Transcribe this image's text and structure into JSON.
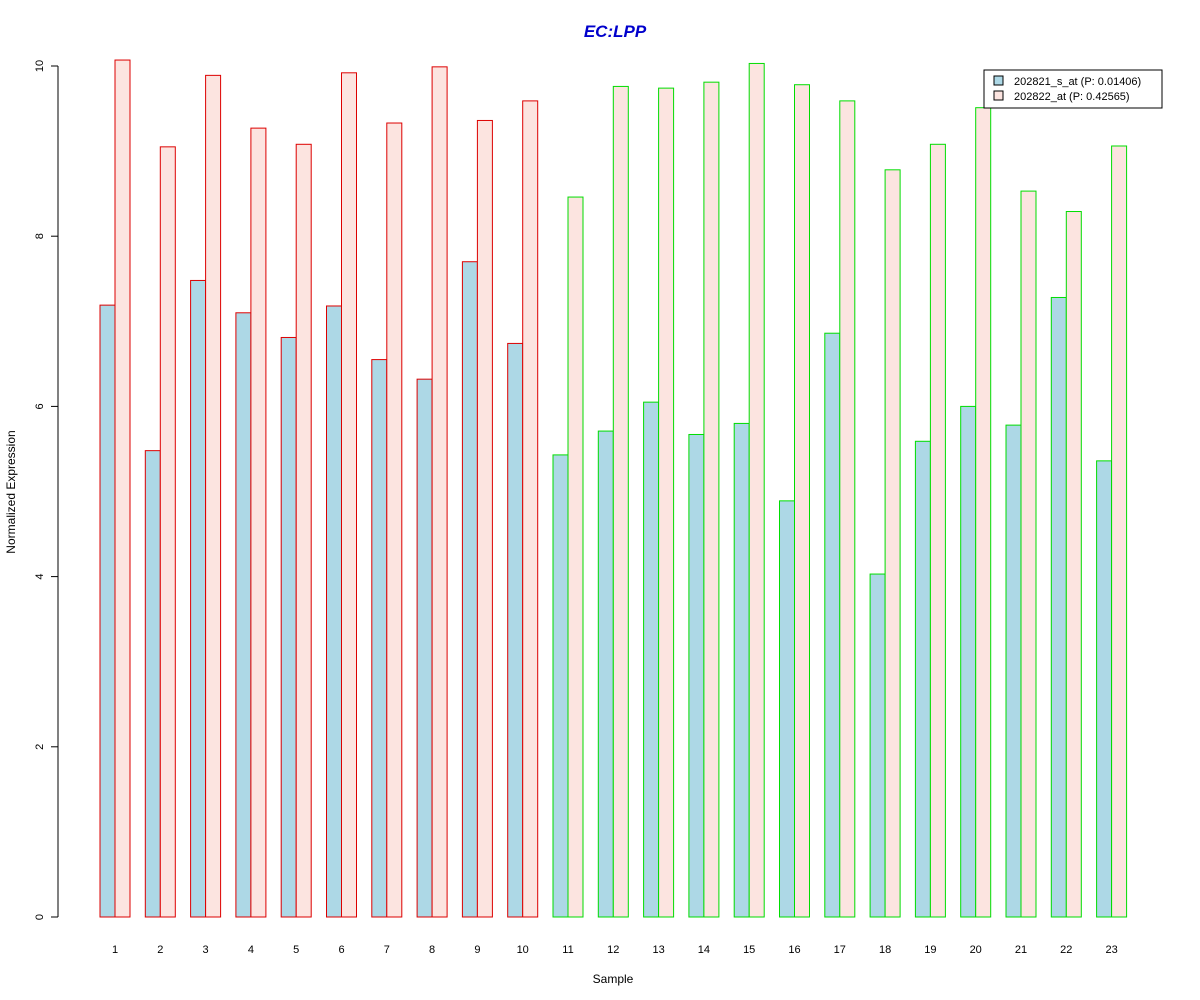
{
  "chart_data": {
    "type": "bar",
    "title": "EC:LPP",
    "xlabel": "Sample",
    "ylabel": "Normalized Expression",
    "ylim": [
      0,
      10
    ],
    "yticks": [
      0,
      2,
      4,
      6,
      8,
      10
    ],
    "grid": false,
    "legend_position": "top-right",
    "categories": [
      "1",
      "2",
      "3",
      "4",
      "5",
      "6",
      "7",
      "8",
      "9",
      "10",
      "11",
      "12",
      "13",
      "14",
      "15",
      "16",
      "17",
      "18",
      "19",
      "20",
      "21",
      "22",
      "23"
    ],
    "series": [
      {
        "name": "202821_s_at (P: 0.01406)",
        "fill": "#add8e6",
        "values": [
          7.19,
          5.48,
          7.48,
          7.1,
          6.81,
          7.18,
          6.55,
          6.32,
          7.7,
          6.74,
          5.43,
          5.71,
          6.05,
          5.67,
          5.8,
          4.89,
          6.86,
          4.03,
          5.59,
          6.0,
          5.78,
          7.28,
          5.36
        ]
      },
      {
        "name": "202822_at (P: 0.42565)",
        "fill": "#fce4e0",
        "values": [
          10.07,
          9.05,
          9.89,
          9.27,
          9.08,
          9.92,
          9.33,
          9.99,
          9.36,
          9.59,
          8.46,
          9.76,
          9.74,
          9.81,
          10.03,
          9.78,
          9.59,
          8.78,
          9.08,
          9.51,
          8.53,
          8.29,
          9.06
        ]
      }
    ],
    "group_border_colors": [
      "#dd0000",
      "#dd0000",
      "#dd0000",
      "#dd0000",
      "#dd0000",
      "#dd0000",
      "#dd0000",
      "#dd0000",
      "#dd0000",
      "#dd0000",
      "#00dd00",
      "#00dd00",
      "#00dd00",
      "#00dd00",
      "#00dd00",
      "#00dd00",
      "#00dd00",
      "#00dd00",
      "#00dd00",
      "#00dd00",
      "#00dd00",
      "#00dd00",
      "#00dd00"
    ],
    "title_color": "#0000cc"
  }
}
